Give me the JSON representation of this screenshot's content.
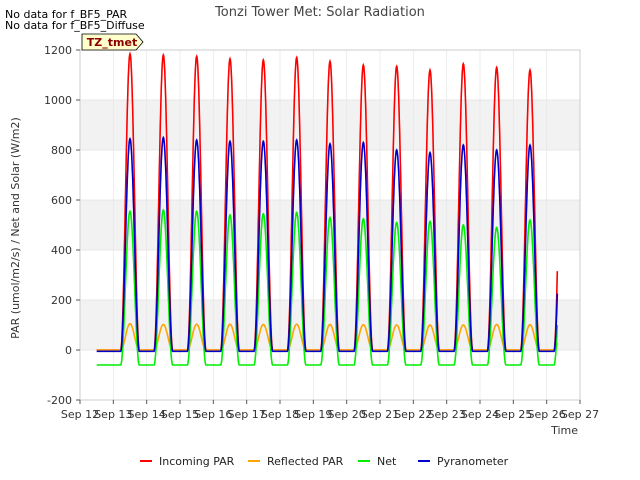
{
  "notes": [
    "No data for f_BF5_PAR",
    "No data for f_BF5_Diffuse"
  ],
  "site_tag": "TZ_tmet",
  "chart_data": {
    "type": "line",
    "title": "Tonzi Tower Met: Solar Radiation",
    "xlabel": "Time",
    "ylabel": "PAR (umol/m2/s) / Net and Solar (W/m2)",
    "ylim": [
      -200,
      1200
    ],
    "yticks": [
      -200,
      0,
      200,
      400,
      600,
      800,
      1000,
      1200
    ],
    "xlim": [
      12,
      27
    ],
    "xticks": [
      {
        "value": 12,
        "label": "Sep 12"
      },
      {
        "value": 13,
        "label": "Sep 13"
      },
      {
        "value": 14,
        "label": "Sep 14"
      },
      {
        "value": 15,
        "label": "Sep 15"
      },
      {
        "value": 16,
        "label": "Sep 16"
      },
      {
        "value": 17,
        "label": "Sep 17"
      },
      {
        "value": 18,
        "label": "Sep 18"
      },
      {
        "value": 19,
        "label": "Sep 19"
      },
      {
        "value": 20,
        "label": "Sep 20"
      },
      {
        "value": 21,
        "label": "Sep 21"
      },
      {
        "value": 22,
        "label": "Sep 22"
      },
      {
        "value": 23,
        "label": "Sep 23"
      },
      {
        "value": 24,
        "label": "Sep 24"
      },
      {
        "value": 25,
        "label": "Sep 25"
      },
      {
        "value": 26,
        "label": "Sep 26"
      },
      {
        "value": 27,
        "label": "Sep 27"
      }
    ],
    "grid": true,
    "legend_position": "bottom",
    "days": [
      13,
      14,
      15,
      16,
      17,
      18,
      19,
      20,
      21,
      22,
      23,
      24,
      25,
      26
    ],
    "series": [
      {
        "name": "Incoming PAR",
        "color": "#ff0000",
        "night": 0,
        "peaks": [
          1185,
          1180,
          1175,
          1165,
          1160,
          1170,
          1155,
          1140,
          1135,
          1120,
          1145,
          1130,
          1120,
          1115
        ]
      },
      {
        "name": "Reflected PAR",
        "color": "#ffa500",
        "night": 0,
        "peaks": [
          105,
          102,
          103,
          103,
          102,
          103,
          102,
          101,
          100,
          100,
          100,
          102,
          101,
          98
        ]
      },
      {
        "name": "Net",
        "color": "#00ee00",
        "night": -60,
        "peaks": [
          555,
          560,
          555,
          540,
          545,
          550,
          530,
          525,
          510,
          515,
          500,
          490,
          520,
          505
        ]
      },
      {
        "name": "Pyranometer",
        "color": "#0000cc",
        "night": -5,
        "peaks": [
          845,
          850,
          840,
          835,
          835,
          840,
          825,
          830,
          800,
          790,
          820,
          800,
          820,
          810
        ]
      }
    ]
  }
}
